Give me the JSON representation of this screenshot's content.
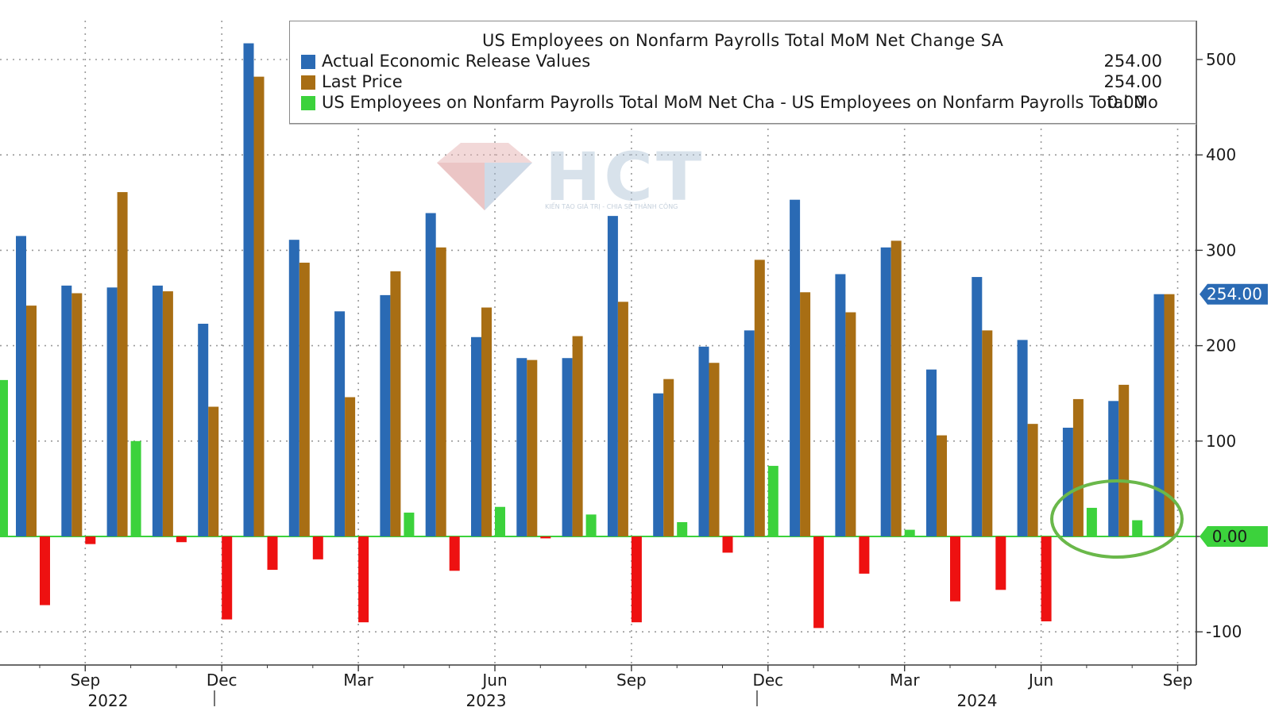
{
  "chart_data": {
    "type": "bar",
    "title": "US Employees on Nonfarm Payrolls Total MoM Net Change SA",
    "x_tick_labels": [
      "Sep",
      "Dec",
      "Mar",
      "Jun",
      "Sep",
      "Dec",
      "Mar",
      "Jun",
      "Sep"
    ],
    "year_labels": [
      "2022",
      "2023",
      "2024"
    ],
    "yticks": [
      -100,
      0,
      100,
      200,
      300,
      400,
      500
    ],
    "ylim": [
      -130,
      545
    ],
    "grid": true,
    "legend_position": "top-right",
    "last_value_tag": "254.00",
    "zero_tag": "0.00",
    "categories": [
      "2022-08",
      "2022-09",
      "2022-10",
      "2022-11",
      "2022-12",
      "2023-01",
      "2023-02",
      "2023-03",
      "2023-04",
      "2023-05",
      "2023-06",
      "2023-07",
      "2023-08",
      "2023-09",
      "2023-10",
      "2023-11",
      "2023-12",
      "2024-01",
      "2024-02",
      "2024-03",
      "2024-04",
      "2024-05",
      "2024-06",
      "2024-07",
      "2024-08",
      "2024-09"
    ],
    "series": [
      {
        "name": "Actual Economic Release Values",
        "legend_value": "254.00",
        "color": "#2a6ab4",
        "values": [
          315,
          263,
          261,
          263,
          223,
          517,
          311,
          236,
          253,
          339,
          209,
          187,
          187,
          336,
          150,
          199,
          216,
          353,
          275,
          303,
          175,
          272,
          206,
          114,
          142,
          254
        ]
      },
      {
        "name": "Last Price",
        "legend_value": "254.00",
        "color": "#a86e14",
        "values": [
          242,
          255,
          361,
          257,
          136,
          482,
          287,
          146,
          278,
          303,
          240,
          185,
          210,
          246,
          165,
          182,
          290,
          256,
          235,
          310,
          106,
          216,
          118,
          144,
          159,
          254
        ]
      },
      {
        "name": "US Employees on Nonfarm Payrolls Total MoM Net Cha - US Employees on Nonfarm Payrolls Total Mo",
        "legend_value": "0.00",
        "positive_color": "#3cd23c",
        "negative_color": "#ee1111",
        "values": [
          -72,
          -8,
          100,
          -6,
          -87,
          -35,
          -24,
          -90,
          25,
          -36,
          31,
          -2,
          23,
          -90,
          15,
          -17,
          74,
          -96,
          -39,
          7,
          -68,
          -56,
          -89,
          30,
          17,
          0
        ]
      }
    ]
  },
  "watermark": {
    "text": "HCT",
    "sub": "KIẾN TẠO GIÁ TRỊ - CHIA SẺ THÀNH CÔNG"
  },
  "colors": {
    "highlight_ellipse": "#6ab84a",
    "axis": "#3a3a3a",
    "tag_blue": "#2a6ab4",
    "tag_green": "#3cd23c"
  }
}
